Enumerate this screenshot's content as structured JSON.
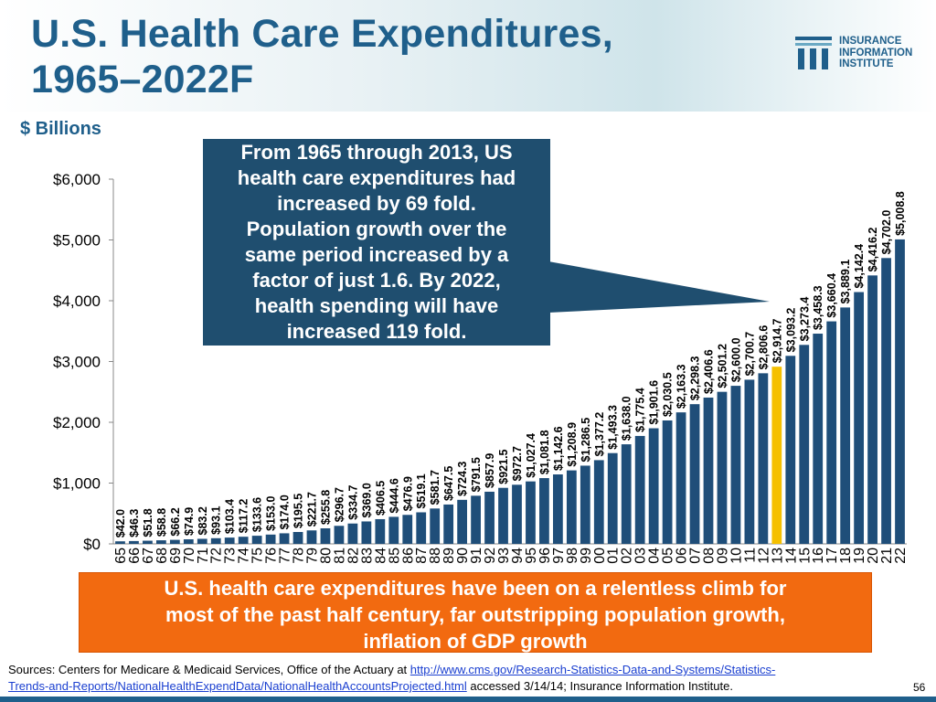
{
  "title": {
    "line1": "U.S. Health Care Expenditures,",
    "line2": "1965–2022F"
  },
  "logo": {
    "line1": "INSURANCE",
    "line2": "INFORMATION",
    "line3": "INSTITUTE",
    "icon": "iii-logo-mark"
  },
  "unit_label": "$ Billions",
  "callout": {
    "lines": [
      "From 1965 through 2013, US",
      "health care expenditures had",
      "increased by 69 fold.",
      "Population growth over the",
      "same period increased by a",
      "factor of just 1.6.  By 2022,",
      "health spending will have",
      "increased 119 fold."
    ]
  },
  "banner": {
    "lines": [
      "U.S. health care expenditures have been on a relentless climb for",
      "most of the past half century, far outstripping population growth,",
      "inflation of GDP growth"
    ]
  },
  "sources": {
    "prefix": "Sources:  Centers for Medicare & Medicaid Services, Office of the Actuary at ",
    "link1": "http://www.cms.gov/Research-Statistics-Data-and-Systems/Statistics-",
    "link2": "Trends-and-Reports/NationalHealthExpendData/NationalHealthAccountsProjected.html",
    "suffix": " accessed 3/14/14; Insurance Information Institute."
  },
  "page_number": "56",
  "colors": {
    "title": "#1f5f8b",
    "bar": "#1f4e79",
    "highlight": "#f5c000",
    "banner": "#f26a10",
    "callout": "#1f4e6f"
  },
  "chart_data": {
    "type": "bar",
    "title": "U.S. Health Care Expenditures, 1965–2022F",
    "ylabel": "$ Billions",
    "xlabel": "",
    "ylim": [
      0,
      6000
    ],
    "yticks": [
      0,
      1000,
      2000,
      3000,
      4000,
      5000,
      6000
    ],
    "ytick_labels": [
      "$0",
      "$1,000",
      "$2,000",
      "$3,000",
      "$4,000",
      "$5,000",
      "$6,000"
    ],
    "highlight_category": "13",
    "categories": [
      "65",
      "66",
      "67",
      "68",
      "69",
      "70",
      "71",
      "72",
      "73",
      "74",
      "75",
      "76",
      "77",
      "78",
      "79",
      "80",
      "81",
      "82",
      "83",
      "84",
      "85",
      "86",
      "87",
      "88",
      "89",
      "90",
      "91",
      "92",
      "93",
      "94",
      "95",
      "96",
      "97",
      "98",
      "99",
      "00",
      "01",
      "02",
      "03",
      "04",
      "05",
      "06",
      "07",
      "08",
      "09",
      "10",
      "11",
      "12",
      "13",
      "14",
      "15",
      "16",
      "17",
      "18",
      "19",
      "20",
      "21",
      "22"
    ],
    "values": [
      42.0,
      46.3,
      51.8,
      58.8,
      66.2,
      74.9,
      83.2,
      93.1,
      103.4,
      117.2,
      133.6,
      153.0,
      174.0,
      195.5,
      221.7,
      255.8,
      296.7,
      334.7,
      369.0,
      406.5,
      444.6,
      476.9,
      519.1,
      581.7,
      647.5,
      724.3,
      791.5,
      857.9,
      921.5,
      972.7,
      1027.4,
      1081.8,
      1142.6,
      1208.9,
      1286.5,
      1377.2,
      1493.3,
      1638.0,
      1775.4,
      1901.6,
      2030.5,
      2163.3,
      2298.3,
      2406.6,
      2501.2,
      2600.0,
      2700.7,
      2806.6,
      2914.7,
      3093.2,
      3273.4,
      3458.3,
      3660.4,
      3889.1,
      4142.4,
      4416.2,
      4702.0,
      5008.8
    ],
    "data_labels": [
      "$42.0",
      "$46.3",
      "$51.8",
      "$58.8",
      "$66.2",
      "$74.9",
      "$83.2",
      "$93.1",
      "$103.4",
      "$117.2",
      "$133.6",
      "$153.0",
      "$174.0",
      "$195.5",
      "$221.7",
      "$255.8",
      "$296.7",
      "$334.7",
      "$369.0",
      "$406.5",
      "$444.6",
      "$476.9",
      "$519.1",
      "$581.7",
      "$647.5",
      "$724.3",
      "$791.5",
      "$857.9",
      "$921.5",
      "$972.7",
      "$1,027.4",
      "$1,081.8",
      "$1,142.6",
      "$1,208.9",
      "$1,286.5",
      "$1,377.2",
      "$1,493.3",
      "$1,638.0",
      "$1,775.4",
      "$1,901.6",
      "$2,030.5",
      "$2,163.3",
      "$2,298.3",
      "$2,406.6",
      "$2,501.2",
      "$2,600.0",
      "$2,700.7",
      "$2,806.6",
      "$2,914.7",
      "$3,093.2",
      "$3,273.4",
      "$3,458.3",
      "$3,660.4",
      "$3,889.1",
      "$4,142.4",
      "$4,416.2",
      "$4,702.0",
      "$5,008.8"
    ]
  }
}
